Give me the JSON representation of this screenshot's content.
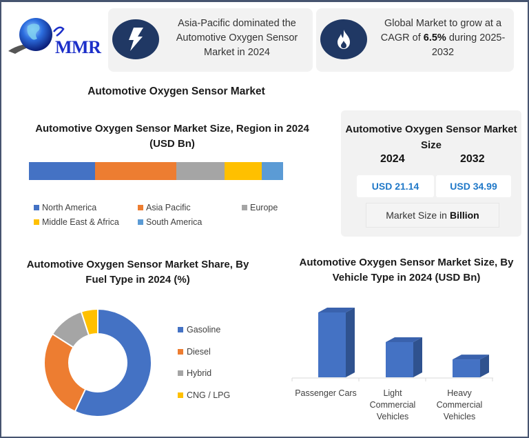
{
  "logo": {
    "text": "MMR",
    "icon": "globe-icon"
  },
  "highlights": [
    {
      "icon": "lightning-icon",
      "text": "Asia-Pacific dominated the Automotive Oxygen Sensor Market in 2024"
    },
    {
      "icon": "flame-icon",
      "text_before": "Global Market to grow at a CAGR of ",
      "text_bold": "6.5%",
      "text_after": " during 2025-2032"
    }
  ],
  "main_title": "Automotive Oxygen Sensor Market",
  "market_size": {
    "title": "Automotive Oxygen Sensor Market Size",
    "years": [
      "2024",
      "2032"
    ],
    "values": [
      "USD 21.14",
      "USD 34.99"
    ],
    "unit_prefix": "Market Size in",
    "unit_bold": "Billion",
    "value_color": "#1f78c8"
  },
  "chart_data": [
    {
      "type": "bar",
      "orientation": "horizontal-stacked",
      "title": "Automotive Oxygen Sensor Market Size, Region in 2024 (USD Bn)",
      "categories": [
        "North America",
        "Asia Pacific",
        "Europe",
        "Middle East & Africa",
        "South America"
      ],
      "values": [
        5.5,
        6.8,
        4.0,
        3.1,
        1.8
      ],
      "colors": [
        "#4472c4",
        "#ed7d31",
        "#a5a5a5",
        "#ffc000",
        "#5b9bd5"
      ],
      "total": 21.14,
      "legend_position": "bottom",
      "grid": false
    },
    {
      "type": "pie",
      "variant": "donut",
      "title": "Automotive Oxygen Sensor Market Share, By Fuel Type in 2024 (%)",
      "categories": [
        "Gasoline",
        "Diesel",
        "Hybrid",
        "CNG / LPG"
      ],
      "values": [
        57,
        27,
        11,
        5
      ],
      "colors": [
        "#4472c4",
        "#ed7d31",
        "#a5a5a5",
        "#ffc000"
      ],
      "legend_position": "right"
    },
    {
      "type": "bar",
      "variant": "3d-column",
      "title": "Automotive Oxygen Sensor Market Size, By Vehicle Type in 2024 (USD Bn)",
      "categories": [
        "Passenger Cars",
        "Light Commercial Vehicles",
        "Heavy Commercial Vehicles"
      ],
      "category_lines": [
        [
          "Passenger Cars"
        ],
        [
          "Light",
          "Commercial",
          "Vehicles"
        ],
        [
          "Heavy",
          "Commercial",
          "Vehicles"
        ]
      ],
      "values": [
        11.6,
        6.3,
        3.2
      ],
      "color": "#4472c4",
      "xlabel": "",
      "ylabel": "",
      "grid": false
    }
  ]
}
